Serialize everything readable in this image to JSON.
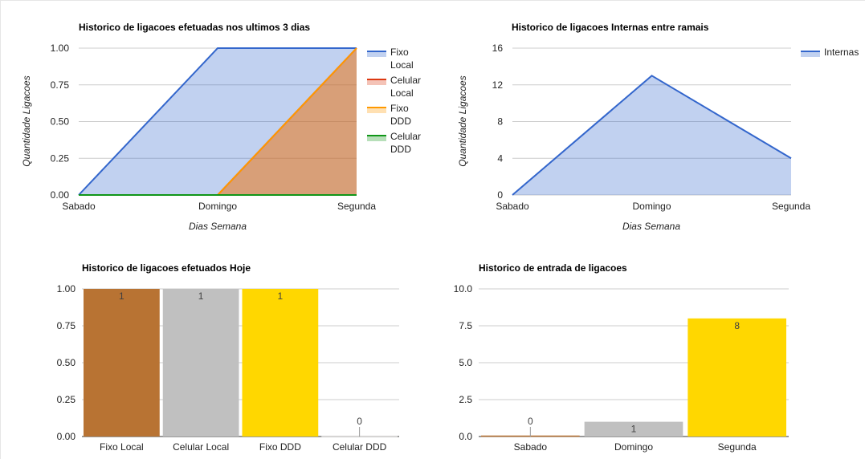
{
  "colors": {
    "blue": "#3366cc",
    "red": "#dc3912",
    "orange": "#ff9900",
    "green": "#109618",
    "bronze": "#b87333",
    "silver": "#c0c0c0",
    "gold": "#ffd700"
  },
  "chart_data": [
    {
      "type": "area",
      "title": "Historico de ligacoes efetuadas nos ultimos 3 dias",
      "xlabel": "Dias Semana",
      "ylabel": "Quantidade Ligacoes",
      "categories": [
        "Sabado",
        "Domingo",
        "Segunda"
      ],
      "ylim": [
        0,
        1
      ],
      "yticks": [
        "0.00",
        "0.25",
        "0.50",
        "0.75",
        "1.00"
      ],
      "legend_position": "right",
      "grid": true,
      "series": [
        {
          "name": "Fixo Local",
          "name_lines": [
            "Fixo",
            "Local"
          ],
          "values": [
            0,
            1,
            1
          ],
          "color": "#3366cc"
        },
        {
          "name": "Celular Local",
          "name_lines": [
            "Celular",
            "Local"
          ],
          "values": [
            0,
            0,
            1
          ],
          "color": "#dc3912"
        },
        {
          "name": "Fixo DDD",
          "name_lines": [
            "Fixo",
            "DDD"
          ],
          "values": [
            0,
            0,
            1
          ],
          "color": "#ff9900"
        },
        {
          "name": "Celular DDD",
          "name_lines": [
            "Celular",
            "DDD"
          ],
          "values": [
            0,
            0,
            0
          ],
          "color": "#109618"
        }
      ]
    },
    {
      "type": "area",
      "title": "Historico de ligacoes Internas entre ramais",
      "xlabel": "Dias Semana",
      "ylabel": "Quantidade Ligacoes",
      "categories": [
        "Sabado",
        "Domingo",
        "Segunda"
      ],
      "ylim": [
        0,
        16
      ],
      "yticks": [
        "0",
        "4",
        "8",
        "12",
        "16"
      ],
      "legend_position": "right",
      "grid": true,
      "series": [
        {
          "name": "Internas",
          "name_lines": [
            "Internas"
          ],
          "values": [
            0,
            13,
            4
          ],
          "color": "#3366cc"
        }
      ]
    },
    {
      "type": "bar",
      "title": "Historico de ligacoes efetuados Hoje",
      "categories": [
        "Fixo Local",
        "Celular Local",
        "Fixo DDD",
        "Celular DDD"
      ],
      "values": [
        1,
        1,
        1,
        0
      ],
      "data_labels": [
        "1",
        "1",
        "1",
        "0"
      ],
      "colors": [
        "#b87333",
        "#c0c0c0",
        "#ffd700",
        "#e5e4e2"
      ],
      "ylim": [
        0,
        1
      ],
      "yticks": [
        "0.00",
        "0.25",
        "0.50",
        "0.75",
        "1.00"
      ],
      "legend_position": "none",
      "grid": true
    },
    {
      "type": "bar",
      "title": "Historico de entrada de ligacoes",
      "categories": [
        "Sabado",
        "Domingo",
        "Segunda"
      ],
      "values": [
        0,
        1,
        8
      ],
      "data_labels": [
        "0",
        "1",
        "8"
      ],
      "colors": [
        "#b87333",
        "#c0c0c0",
        "#ffd700"
      ],
      "ylim": [
        0,
        10
      ],
      "yticks": [
        "0.0",
        "2.5",
        "5.0",
        "7.5",
        "10.0"
      ],
      "legend_position": "none",
      "grid": true
    }
  ]
}
